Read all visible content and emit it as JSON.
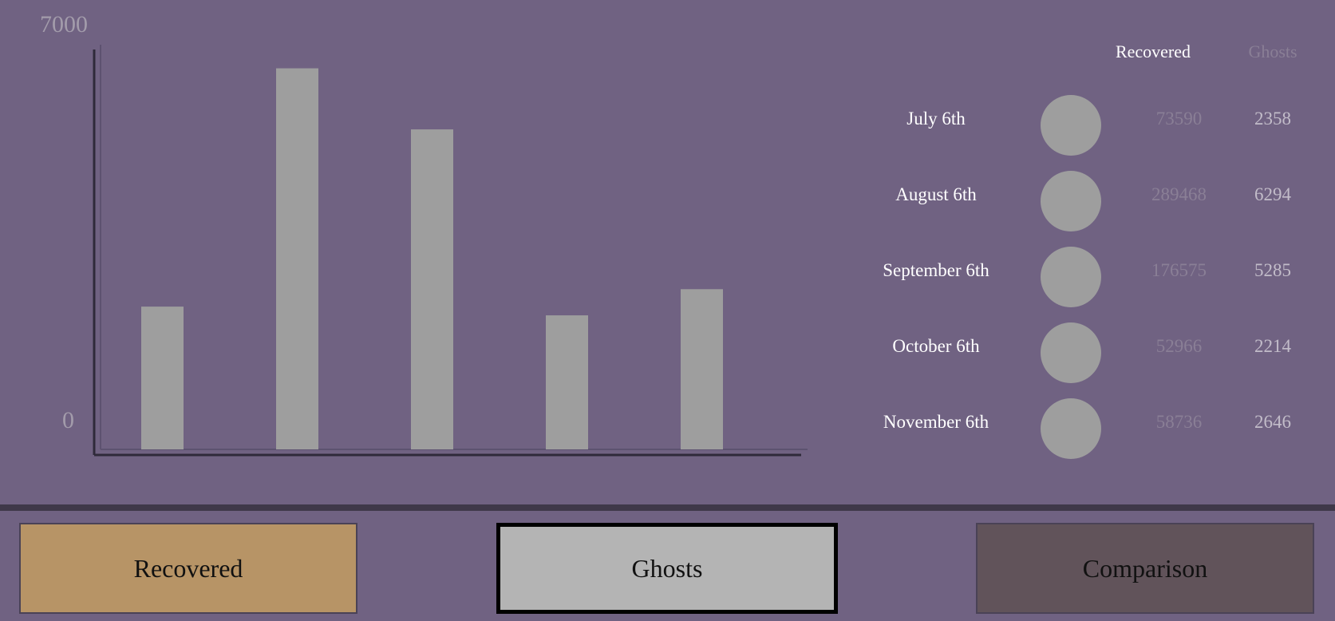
{
  "chart_data": {
    "type": "bar",
    "categories": [
      "July 6th",
      "August 6th",
      "September 6th",
      "October 6th",
      "November 6th"
    ],
    "values": [
      2358,
      6294,
      5285,
      2214,
      2646
    ],
    "ylim": [
      0,
      7000
    ],
    "tick_labels": [
      "7000",
      "0"
    ],
    "grid": false
  },
  "table": {
    "header_recovered": "Recovered",
    "header_ghosts": "Ghosts",
    "rows": [
      {
        "date": "July 6th",
        "recovered": "73590",
        "ghosts": "2358"
      },
      {
        "date": "August 6th",
        "recovered": "289468",
        "ghosts": "6294"
      },
      {
        "date": "September 6th",
        "recovered": "176575",
        "ghosts": "5285"
      },
      {
        "date": "October 6th",
        "recovered": "52966",
        "ghosts": "2214"
      },
      {
        "date": "November 6th",
        "recovered": "58736",
        "ghosts": "2646"
      }
    ]
  },
  "tabs": {
    "recovered_label": "Recovered",
    "ghosts_label": "Ghosts",
    "comparison_label": "Comparison",
    "selected": "Ghosts"
  },
  "colors": {
    "background": "#706282",
    "bar": "#9e9e9e",
    "recovered_tab": "#b79466",
    "ghosts_tab": "#b4b4b4",
    "comparison_tab": "#61535a"
  }
}
